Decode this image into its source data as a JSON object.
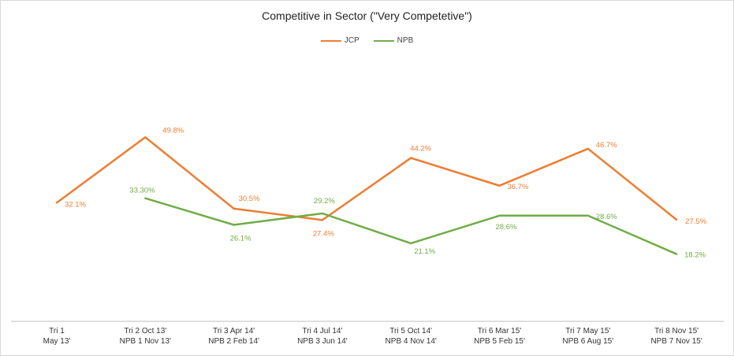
{
  "chart_data": {
    "type": "line",
    "title": "Competitive in Sector (\"Very Competetive\")",
    "categories": [
      [
        "Tri 1",
        "May 13'"
      ],
      [
        "Tri 2 Oct 13'",
        "NPB 1 Nov 13'"
      ],
      [
        "Tri 3  Apr 14'",
        "NPB 2 Feb 14'"
      ],
      [
        "Tri 4  Jul 14'",
        "NPB 3 Jun 14'"
      ],
      [
        "Tri 5  Oct 14'",
        "NPB 4  Nov 14'"
      ],
      [
        "Tri 6  Mar 15'",
        "NPB 5 Feb 15'"
      ],
      [
        "Tri 7 May 15'",
        "NPB 6  Aug 15'"
      ],
      [
        "Tri 8 Nov 15'",
        "NPB 7 Nov 15'"
      ]
    ],
    "series": [
      {
        "name": "JCP",
        "color": "#ED7D31",
        "values": [
          32.1,
          49.8,
          30.5,
          27.4,
          44.2,
          36.7,
          46.7,
          27.5
        ],
        "labels": [
          "32.1%",
          "49.8%",
          "30.5%",
          "27.4%",
          "44.2%",
          "36.7%",
          "46.7%",
          "27.5%"
        ]
      },
      {
        "name": "NPB",
        "color": "#70AD47",
        "values": [
          null,
          33.3,
          26.1,
          29.2,
          21.1,
          28.6,
          28.6,
          18.2
        ],
        "labels": [
          null,
          "33.30%",
          "26.1%",
          "29.2%",
          "21.1%",
          "28.6%",
          "28.6%",
          "18.2%"
        ]
      }
    ],
    "ylim": [
      0,
      60
    ],
    "xlabel": "",
    "ylabel": "",
    "grid": false,
    "legend_position": "top"
  }
}
